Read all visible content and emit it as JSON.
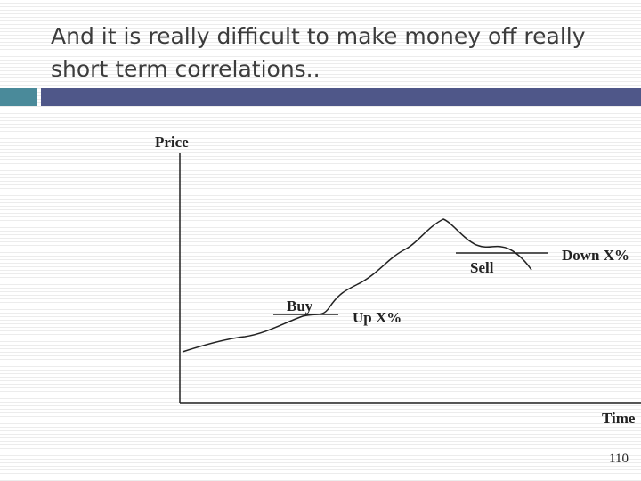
{
  "slide": {
    "title_lines": [
      "And it is really difficult to make money off really",
      "short term correlations.."
    ],
    "page_number": "110"
  },
  "figure": {
    "y_axis_label": "Price",
    "x_axis_label": "Time",
    "buy_label": "Buy",
    "up_label": "Up X%",
    "sell_label": "Sell",
    "down_label": "Down X%"
  },
  "colors": {
    "title_text": "#3c3c3c",
    "accent_teal": "#4a8a9a",
    "accent_purple": "#4f5789",
    "line": "#222222"
  }
}
